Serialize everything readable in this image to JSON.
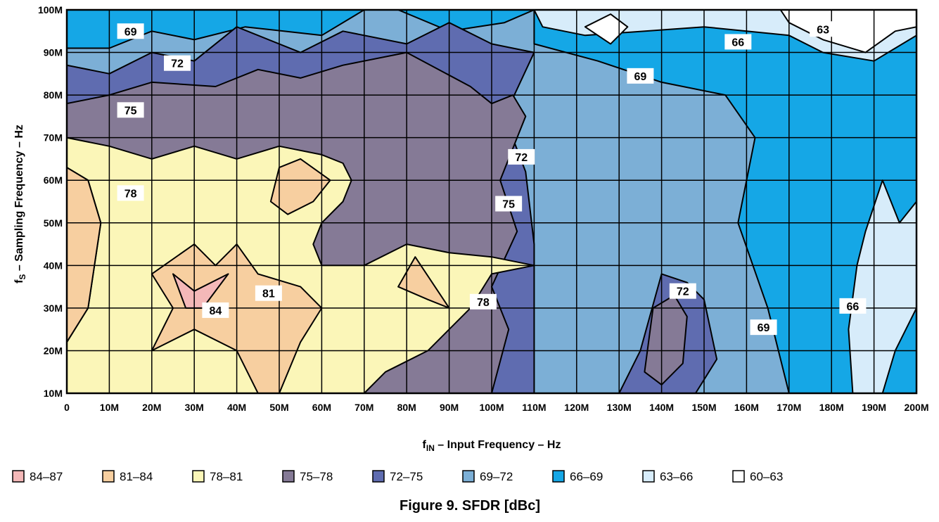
{
  "chart_data": {
    "type": "heatmap",
    "title": "Figure 9. SFDR [dBc]",
    "xlabel_main": "f",
    "xlabel_sub": "IN",
    "xlabel_rest": " – Input Frequency – Hz",
    "ylabel_main": "f",
    "ylabel_sub": "S",
    "ylabel_rest": " – Sampling Frequency  – Hz",
    "x_ticks": [
      "0",
      "10M",
      "20M",
      "30M",
      "40M",
      "50M",
      "60M",
      "70M",
      "80M",
      "90M",
      "100M",
      "110M",
      "120M",
      "130M",
      "140M",
      "150M",
      "160M",
      "170M",
      "180M",
      "190M",
      "200M"
    ],
    "y_ticks": [
      "10M",
      "20M",
      "30M",
      "40M",
      "50M",
      "60M",
      "70M",
      "80M",
      "90M",
      "100M"
    ],
    "xlim": [
      0,
      200000000
    ],
    "ylim": [
      10000000,
      100000000
    ],
    "grid": true,
    "legend_position": "bottom",
    "legend": [
      {
        "label": "84–87",
        "color": "#f4b8b8"
      },
      {
        "label": "81–84",
        "color": "#f7cfa0"
      },
      {
        "label": "78–81",
        "color": "#fbf6b8"
      },
      {
        "label": "75–78",
        "color": "#857a96"
      },
      {
        "label": "72–75",
        "color": "#5f6cb0"
      },
      {
        "label": "69–72",
        "color": "#7cafd6"
      },
      {
        "label": "66–69",
        "color": "#15a7e6"
      },
      {
        "label": "63–66",
        "color": "#d7ecfa"
      },
      {
        "label": "60–63",
        "color": "#ffffff"
      }
    ],
    "contour_labels": [
      {
        "text": "69",
        "x": 15000000,
        "y": 95000000
      },
      {
        "text": "72",
        "x": 26000000,
        "y": 87500000
      },
      {
        "text": "75",
        "x": 15000000,
        "y": 76500000
      },
      {
        "text": "78",
        "x": 15000000,
        "y": 57000000
      },
      {
        "text": "81",
        "x": 47500000,
        "y": 33500000
      },
      {
        "text": "84",
        "x": 35000000,
        "y": 29500000
      },
      {
        "text": "78",
        "x": 98000000,
        "y": 31500000
      },
      {
        "text": "72",
        "x": 107000000,
        "y": 65500000
      },
      {
        "text": "75",
        "x": 104000000,
        "y": 54500000
      },
      {
        "text": "69",
        "x": 135000000,
        "y": 84500000
      },
      {
        "text": "66",
        "x": 158000000,
        "y": 92500000
      },
      {
        "text": "63",
        "x": 178000000,
        "y": 95500000
      },
      {
        "text": "72",
        "x": 145000000,
        "y": 34000000
      },
      {
        "text": "66",
        "x": 185000000,
        "y": 30500000
      },
      {
        "text": "69",
        "x": 164000000,
        "y": 25500000
      }
    ],
    "regions": [
      {
        "band": "69–72",
        "points": [
          [
            0,
            10
          ],
          [
            200,
            10
          ],
          [
            200,
            100
          ],
          [
            0,
            100
          ]
        ]
      },
      {
        "band": "66–69",
        "points": [
          [
            110,
            100
          ],
          [
            200,
            100
          ],
          [
            200,
            10
          ],
          [
            170,
            10
          ],
          [
            165,
            30
          ],
          [
            158,
            50
          ],
          [
            162,
            70
          ],
          [
            155,
            80
          ],
          [
            140,
            83
          ],
          [
            125,
            88
          ],
          [
            110,
            92
          ]
        ]
      },
      {
        "band": "66–69",
        "points": [
          [
            0,
            91
          ],
          [
            10,
            91
          ],
          [
            20,
            95
          ],
          [
            30,
            93
          ],
          [
            42,
            96
          ],
          [
            60,
            94
          ],
          [
            70,
            100
          ],
          [
            0,
            100
          ]
        ]
      },
      {
        "band": "66–69",
        "points": [
          [
            78,
            100
          ],
          [
            90,
            95
          ],
          [
            103,
            97
          ],
          [
            110,
            100
          ]
        ]
      },
      {
        "band": "63–66",
        "points": [
          [
            110,
            100
          ],
          [
            112,
            96
          ],
          [
            122,
            94
          ],
          [
            150,
            96
          ],
          [
            170,
            94
          ],
          [
            178,
            90
          ],
          [
            190,
            88
          ],
          [
            200,
            94
          ],
          [
            200,
            100
          ]
        ]
      },
      {
        "band": "63–66",
        "points": [
          [
            185,
            10
          ],
          [
            192,
            10
          ],
          [
            195,
            20
          ],
          [
            200,
            30
          ],
          [
            200,
            55
          ],
          [
            196,
            50
          ],
          [
            192,
            60
          ],
          [
            188,
            48
          ],
          [
            186,
            40
          ],
          [
            184,
            25
          ]
        ]
      },
      {
        "band": "60–63",
        "points": [
          [
            168,
            100
          ],
          [
            200,
            100
          ],
          [
            200,
            96
          ],
          [
            195,
            95
          ],
          [
            188,
            90
          ],
          [
            178,
            93
          ],
          [
            170,
            97
          ]
        ]
      },
      {
        "band": "60–63",
        "points": [
          [
            122,
            96
          ],
          [
            128,
            92
          ],
          [
            132,
            96
          ],
          [
            128,
            99
          ]
        ]
      },
      {
        "band": "72–75",
        "points": [
          [
            0,
            70
          ],
          [
            0,
            87
          ],
          [
            10,
            85
          ],
          [
            20,
            90
          ],
          [
            30,
            88
          ],
          [
            40,
            96
          ],
          [
            55,
            90
          ],
          [
            65,
            95
          ],
          [
            80,
            92
          ],
          [
            90,
            97
          ],
          [
            100,
            92
          ],
          [
            110,
            90
          ],
          [
            103,
            75
          ],
          [
            108,
            62
          ],
          [
            110,
            45
          ],
          [
            110,
            10
          ],
          [
            0,
            10
          ]
        ]
      },
      {
        "band": "72–75",
        "points": [
          [
            135,
            20
          ],
          [
            140,
            38
          ],
          [
            146,
            36
          ],
          [
            150,
            32
          ],
          [
            153,
            18
          ],
          [
            148,
            10
          ],
          [
            130,
            10
          ]
        ]
      },
      {
        "band": "75–78",
        "points": [
          [
            0,
            10
          ],
          [
            100,
            10
          ],
          [
            104,
            25
          ],
          [
            100,
            35
          ],
          [
            106,
            48
          ],
          [
            102,
            60
          ],
          [
            108,
            75
          ],
          [
            105,
            80
          ],
          [
            100,
            78
          ],
          [
            95,
            82
          ],
          [
            80,
            90
          ],
          [
            65,
            87
          ],
          [
            55,
            84
          ],
          [
            45,
            86
          ],
          [
            35,
            82
          ],
          [
            20,
            83
          ],
          [
            10,
            80
          ],
          [
            0,
            78
          ]
        ]
      },
      {
        "band": "75–78",
        "points": [
          [
            136,
            15
          ],
          [
            138,
            30
          ],
          [
            143,
            33
          ],
          [
            146,
            28
          ],
          [
            145,
            17
          ],
          [
            140,
            12
          ]
        ]
      },
      {
        "band": "78–81",
        "points": [
          [
            0,
            70
          ],
          [
            10,
            68
          ],
          [
            20,
            65
          ],
          [
            30,
            68
          ],
          [
            40,
            65
          ],
          [
            50,
            68
          ],
          [
            60,
            66
          ],
          [
            65,
            64
          ],
          [
            67,
            60
          ],
          [
            65,
            55
          ],
          [
            60,
            50
          ],
          [
            58,
            45
          ],
          [
            60,
            40
          ],
          [
            70,
            40
          ],
          [
            80,
            45
          ],
          [
            90,
            43
          ],
          [
            100,
            42
          ],
          [
            110,
            40
          ],
          [
            100,
            38
          ],
          [
            95,
            30
          ],
          [
            85,
            20
          ],
          [
            75,
            15
          ],
          [
            70,
            10
          ],
          [
            0,
            10
          ],
          [
            0,
            22
          ],
          [
            5,
            30
          ],
          [
            8,
            50
          ],
          [
            5,
            60
          ],
          [
            0,
            63
          ]
        ]
      },
      {
        "band": "81–84",
        "points": [
          [
            0,
            63
          ],
          [
            5,
            60
          ],
          [
            8,
            50
          ],
          [
            5,
            30
          ],
          [
            0,
            22
          ]
        ]
      },
      {
        "band": "81–84",
        "points": [
          [
            20,
            20
          ],
          [
            25,
            30
          ],
          [
            20,
            38
          ],
          [
            30,
            45
          ],
          [
            35,
            40
          ],
          [
            40,
            45
          ],
          [
            45,
            38
          ],
          [
            55,
            35
          ],
          [
            60,
            30
          ],
          [
            55,
            22
          ],
          [
            50,
            10
          ],
          [
            45,
            10
          ],
          [
            40,
            20
          ],
          [
            30,
            25
          ]
        ]
      },
      {
        "band": "81–84",
        "points": [
          [
            48,
            55
          ],
          [
            50,
            63
          ],
          [
            55,
            65
          ],
          [
            62,
            60
          ],
          [
            58,
            55
          ],
          [
            52,
            52
          ]
        ]
      },
      {
        "band": "81–84",
        "points": [
          [
            78,
            35
          ],
          [
            82,
            42
          ],
          [
            90,
            30
          ],
          [
            85,
            32
          ]
        ]
      },
      {
        "band": "84–87",
        "points": [
          [
            25,
            38
          ],
          [
            30,
            34
          ],
          [
            38,
            38
          ],
          [
            32,
            30
          ],
          [
            28,
            30
          ]
        ]
      }
    ]
  }
}
